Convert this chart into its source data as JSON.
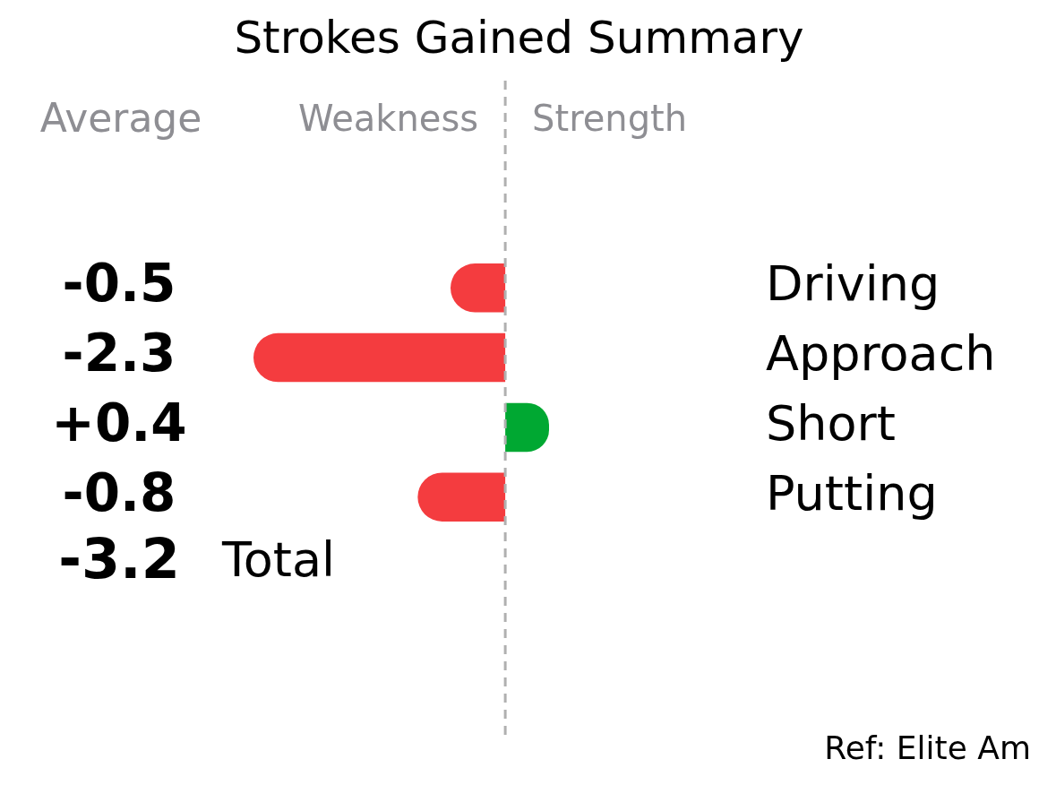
{
  "chart_data": {
    "type": "bar",
    "orientation": "horizontal",
    "title": "Strokes Gained Summary",
    "categories": [
      "Driving",
      "Approach",
      "Short",
      "Putting"
    ],
    "values": [
      -0.5,
      -2.3,
      0.4,
      -0.8
    ],
    "colors": [
      "#f43c3f",
      "#f43c3f",
      "#00a832",
      "#f43c3f"
    ],
    "value_labels": [
      "-0.5",
      "-2.3",
      "+0.4",
      "-0.8"
    ],
    "tick_labels": "y",
    "grid": false,
    "legend": false,
    "ref_lines": [
      {
        "axis": "x",
        "value": 0,
        "color": "#b0b0b0",
        "line_style": "dashed"
      }
    ],
    "annotations": [
      "Average",
      "Weakness",
      "Strength",
      "-3.2",
      "Total",
      "Ref: Elite Am"
    ]
  }
}
